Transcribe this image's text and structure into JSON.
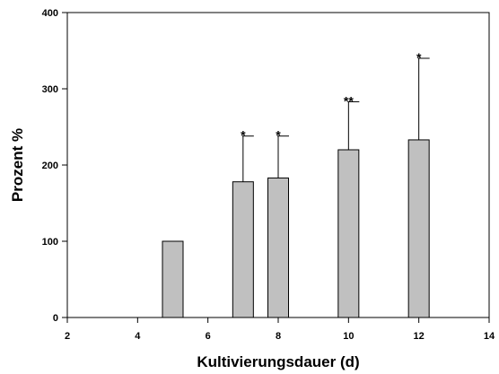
{
  "chart_data": {
    "type": "bar",
    "xlabel": "Kultivierungsdauer (d)",
    "ylabel": "Prozent %",
    "xlim": [
      2,
      14
    ],
    "ylim": [
      0,
      400
    ],
    "xticks": [
      2,
      4,
      6,
      8,
      10,
      12,
      14
    ],
    "yticks": [
      0,
      100,
      200,
      300,
      400
    ],
    "x": [
      5,
      7,
      8,
      10,
      12
    ],
    "values": [
      100,
      178,
      183,
      220,
      233
    ],
    "error_upper": [
      0,
      60,
      55,
      63,
      107
    ],
    "annotations": [
      "",
      "*",
      "*",
      "**",
      "*"
    ],
    "bar_color": "#c0c0c0",
    "grid": false,
    "legend": "none"
  }
}
